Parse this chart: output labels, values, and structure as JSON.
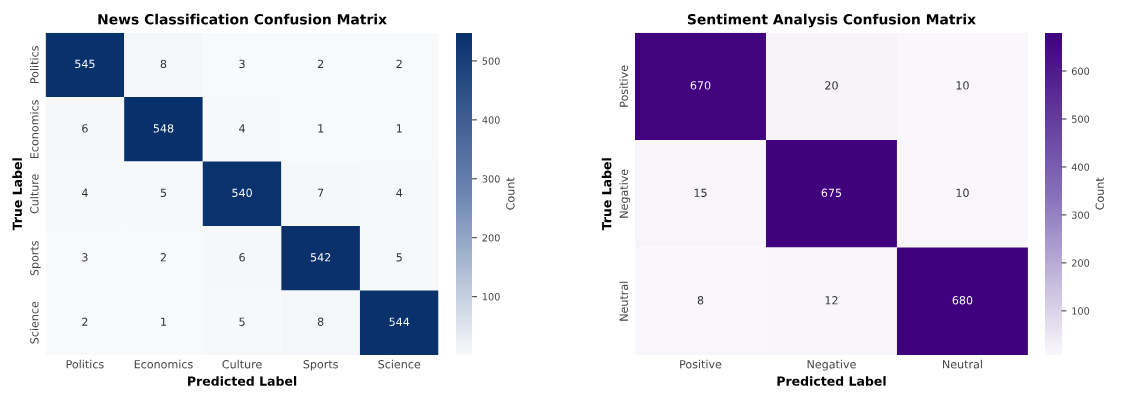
{
  "chart_data": [
    {
      "type": "heatmap",
      "title": "News Classification Confusion Matrix",
      "xlabel": "Predicted Label",
      "ylabel": "True Label",
      "clabel": "Count",
      "color": "#08306b",
      "categories": [
        "Politics",
        "Economics",
        "Culture",
        "Sports",
        "Science"
      ],
      "y_categories": [
        "Politics",
        "Economics",
        "Culture",
        "Sports",
        "Science"
      ],
      "cells": [
        [
          545,
          8,
          3,
          2,
          2
        ],
        [
          6,
          548,
          4,
          1,
          1
        ],
        [
          4,
          5,
          540,
          7,
          4
        ],
        [
          3,
          2,
          6,
          542,
          5
        ],
        [
          2,
          1,
          5,
          8,
          544
        ]
      ],
      "clim": [
        1,
        548
      ],
      "cticks": [
        100,
        200,
        300,
        400,
        500
      ],
      "data_labels": true
    },
    {
      "type": "heatmap",
      "title": "Sentiment Analysis Confusion Matrix",
      "xlabel": "Predicted Label",
      "ylabel": "True Label",
      "clabel": "Count",
      "color": "#3f007d",
      "categories": [
        "Positive",
        "Negative",
        "Neutral"
      ],
      "y_categories": [
        "Positive",
        "Negative",
        "Neutral"
      ],
      "cells": [
        [
          670,
          20,
          10
        ],
        [
          15,
          675,
          10
        ],
        [
          8,
          12,
          680
        ]
      ],
      "clim": [
        8,
        680
      ],
      "cticks": [
        100,
        200,
        300,
        400,
        500,
        600
      ],
      "data_labels": true
    }
  ]
}
